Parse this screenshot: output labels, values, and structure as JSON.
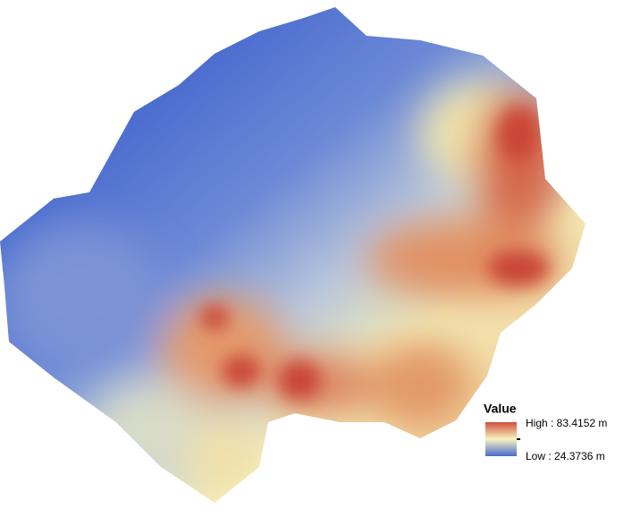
{
  "legend": {
    "title": "Value",
    "high": "High : 83.4152 m",
    "low": "Low : 24.3736 m"
  }
}
